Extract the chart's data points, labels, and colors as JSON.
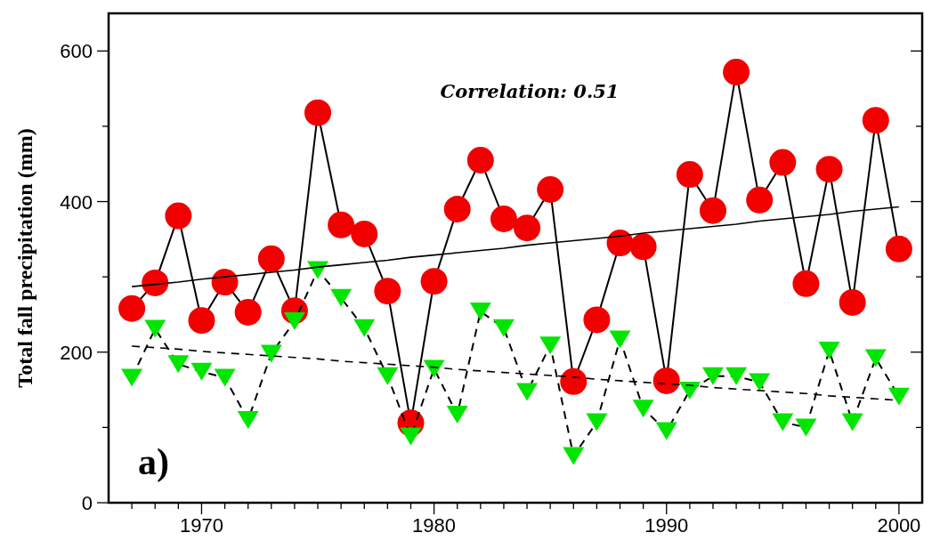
{
  "chart_data": {
    "type": "line",
    "ylabel": "Total fall precipitation (mm)",
    "annotations": [
      "Correlation: 0.51",
      "a)"
    ],
    "x": [
      1967,
      1968,
      1969,
      1970,
      1971,
      1972,
      1973,
      1974,
      1975,
      1976,
      1977,
      1978,
      1979,
      1980,
      1981,
      1982,
      1983,
      1984,
      1985,
      1986,
      1987,
      1988,
      1989,
      1990,
      1991,
      1992,
      1993,
      1994,
      1995,
      1996,
      1997,
      1998,
      1999,
      2000
    ],
    "series": [
      {
        "color": "#f20000",
        "marker": "circle",
        "line_style": "solid",
        "values": [
          258,
          292,
          381,
          242,
          293,
          253,
          324,
          255,
          518,
          369,
          357,
          281,
          106,
          294,
          390,
          455,
          377,
          365,
          416,
          161,
          243,
          345,
          340,
          162,
          436,
          388,
          572,
          402,
          452,
          291,
          443,
          266,
          508,
          337
        ]
      },
      {
        "color": "#00e600",
        "marker": "triangle",
        "line_style": "dashed",
        "values": [
          166,
          231,
          184,
          174,
          166,
          110,
          198,
          241,
          309,
          272,
          232,
          168,
          88,
          178,
          117,
          254,
          232,
          147,
          209,
          62,
          107,
          217,
          125,
          95,
          149,
          168,
          168,
          160,
          107,
          100,
          202,
          107,
          192,
          141
        ]
      },
      {
        "type": "line",
        "color": "#000000",
        "marker": "none",
        "line_style": "solid",
        "values": [
          287,
          290,
          293,
          297,
          300,
          303,
          306,
          309,
          313,
          316,
          319,
          322,
          326,
          329,
          332,
          335,
          338,
          342,
          345,
          348,
          351,
          354,
          358,
          361,
          364,
          367,
          370,
          374,
          377,
          380,
          383,
          387,
          390,
          393
        ]
      },
      {
        "type": "line",
        "color": "#000000",
        "marker": "none",
        "line_style": "dashed",
        "values": [
          208,
          206,
          204,
          201,
          199,
          197,
          195,
          193,
          191,
          188,
          186,
          184,
          182,
          180,
          177,
          175,
          173,
          171,
          169,
          167,
          164,
          162,
          160,
          158,
          156,
          153,
          151,
          149,
          147,
          145,
          142,
          140,
          138,
          136
        ]
      }
    ],
    "xlim": [
      1966,
      2001
    ],
    "ylim": [
      0,
      650
    ],
    "xticks": [
      {
        "value": 1967,
        "label": null
      },
      {
        "value": 1968,
        "label": null
      },
      {
        "value": 1969,
        "label": null
      },
      1970,
      {
        "value": 1971,
        "label": null
      },
      {
        "value": 1972,
        "label": null
      },
      {
        "value": 1973,
        "label": null
      },
      {
        "value": 1974,
        "label": null
      },
      {
        "value": 1975,
        "label": null
      },
      {
        "value": 1976,
        "label": null
      },
      {
        "value": 1977,
        "label": null
      },
      {
        "value": 1978,
        "label": null
      },
      {
        "value": 1979,
        "label": null
      },
      1980,
      {
        "value": 1981,
        "label": null
      },
      {
        "value": 1982,
        "label": null
      },
      {
        "value": 1983,
        "label": null
      },
      {
        "value": 1984,
        "label": null
      },
      {
        "value": 1985,
        "label": null
      },
      {
        "value": 1986,
        "label": null
      },
      {
        "value": 1987,
        "label": null
      },
      {
        "value": 1988,
        "label": null
      },
      {
        "value": 1989,
        "label": null
      },
      1990,
      {
        "value": 1991,
        "label": null
      },
      {
        "value": 1992,
        "label": null
      },
      {
        "value": 1993,
        "label": null
      },
      {
        "value": 1994,
        "label": null
      },
      {
        "value": 1995,
        "label": null
      },
      {
        "value": 1996,
        "label": null
      },
      {
        "value": 1997,
        "label": null
      },
      {
        "value": 1998,
        "label": null
      },
      {
        "value": 1999,
        "label": null
      },
      2000
    ],
    "yticks": [
      0,
      {
        "value": 100,
        "label": null
      },
      200,
      {
        "value": 300,
        "label": null
      },
      400,
      {
        "value": 500,
        "label": null
      },
      600
    ],
    "grid": false,
    "legend": false
  }
}
